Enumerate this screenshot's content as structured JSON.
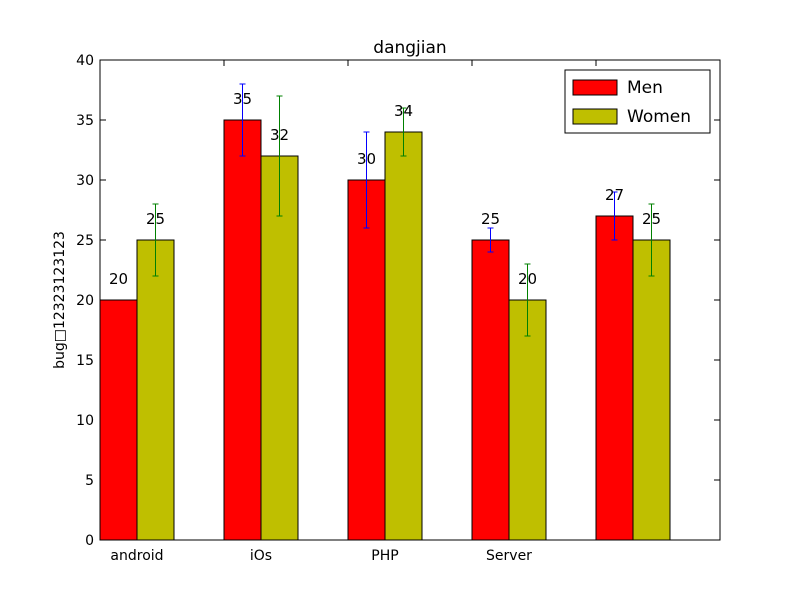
{
  "chart_data": {
    "type": "bar",
    "title": "dangjian",
    "xlabel": "",
    "ylabel": "bug□12323123123",
    "ylim": [
      0,
      40
    ],
    "yticks": [
      0,
      5,
      10,
      15,
      20,
      25,
      30,
      35,
      40
    ],
    "categories": [
      "android",
      "iOs",
      "PHP",
      "Server",
      ""
    ],
    "series": [
      {
        "name": "Men",
        "color": "#ff0000",
        "error_color": "#0000ff",
        "values": [
          20,
          35,
          30,
          25,
          27
        ],
        "errors": [
          0,
          3,
          4,
          1,
          2
        ]
      },
      {
        "name": "Women",
        "color": "#bfbf00",
        "error_color": "#008000",
        "values": [
          25,
          32,
          34,
          20,
          25
        ],
        "errors": [
          3,
          5,
          2,
          3,
          3
        ]
      }
    ],
    "value_labels": true,
    "legend_position": "upper right",
    "grid": false
  }
}
